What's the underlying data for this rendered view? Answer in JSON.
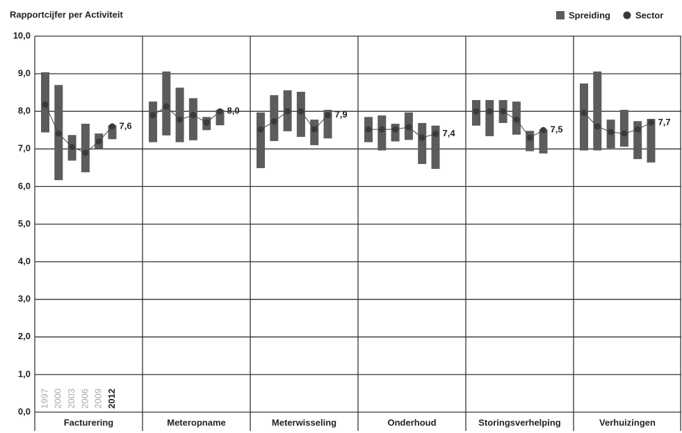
{
  "chart_data": {
    "type": "floating_bar",
    "title": "Rapportcijfer per Activiteit",
    "categories": [
      "Facturering",
      "Meteropname",
      "Meterwisseling",
      "Onderhoud",
      "Storingsverhelping",
      "Verhuizingen"
    ],
    "years": [
      "1997",
      "2000",
      "2003",
      "2006",
      "2009",
      "2012"
    ],
    "ylim": [
      0,
      10
    ],
    "yticks": [
      {
        "value": 0,
        "label": "0,0"
      },
      {
        "value": 1,
        "label": "1,0"
      },
      {
        "value": 2,
        "label": "2,0"
      },
      {
        "value": 3,
        "label": "3,0"
      },
      {
        "value": 4,
        "label": "4,0"
      },
      {
        "value": 5,
        "label": "5,0"
      },
      {
        "value": 6,
        "label": "6,0"
      },
      {
        "value": 7,
        "label": "7,0"
      },
      {
        "value": 8,
        "label": "8,0"
      },
      {
        "value": 9,
        "label": "9,0"
      },
      {
        "value": 10,
        "label": "10,0"
      }
    ],
    "grid": true,
    "legend": "top-right",
    "series": [
      {
        "name": "Spreiding",
        "color": "#5c5c5c",
        "high": [
          [
            9.04,
            8.7,
            7.37,
            7.67,
            7.41,
            7.63
          ],
          [
            8.26,
            9.06,
            8.63,
            8.35,
            7.85,
            8.04
          ],
          [
            7.97,
            8.43,
            8.56,
            8.52,
            7.78,
            8.04
          ],
          [
            7.85,
            7.89,
            7.67,
            7.97,
            7.69,
            7.62
          ],
          [
            8.3,
            8.3,
            8.3,
            8.26,
            7.48,
            7.52
          ],
          [
            8.74,
            9.06,
            7.78,
            8.04,
            7.74,
            7.8
          ]
        ],
        "low": [
          [
            7.44,
            6.17,
            6.69,
            6.38,
            7.0,
            7.26
          ],
          [
            7.18,
            7.36,
            7.18,
            7.23,
            7.5,
            7.63
          ],
          [
            6.49,
            7.21,
            7.47,
            7.32,
            7.1,
            7.28
          ],
          [
            7.18,
            6.96,
            7.2,
            7.24,
            6.6,
            6.47
          ],
          [
            7.62,
            7.34,
            7.69,
            7.38,
            6.94,
            6.88
          ],
          [
            6.96,
            6.96,
            7.02,
            7.06,
            6.73,
            6.64
          ]
        ]
      },
      {
        "name": "Sector",
        "color": "#3a3a3a",
        "values": [
          [
            8.18,
            7.41,
            7.05,
            6.9,
            7.2,
            7.6
          ],
          [
            7.9,
            8.13,
            7.78,
            7.9,
            7.7,
            8.0
          ],
          [
            7.52,
            7.73,
            8.0,
            8.0,
            7.52,
            7.9
          ],
          [
            7.52,
            7.52,
            7.52,
            7.58,
            7.3,
            7.4
          ],
          [
            8.0,
            8.0,
            8.0,
            7.78,
            7.3,
            7.5
          ],
          [
            7.96,
            7.6,
            7.45,
            7.41,
            7.52,
            7.7
          ]
        ],
        "value_labels": [
          [
            null,
            null,
            null,
            null,
            null,
            "7,6"
          ],
          [
            null,
            null,
            null,
            null,
            null,
            "8,0"
          ],
          [
            null,
            null,
            null,
            null,
            null,
            "7,9"
          ],
          [
            null,
            null,
            null,
            null,
            null,
            "7,4"
          ],
          [
            null,
            null,
            null,
            null,
            null,
            "7,5"
          ],
          [
            null,
            null,
            null,
            null,
            null,
            "7,7"
          ]
        ]
      }
    ]
  }
}
